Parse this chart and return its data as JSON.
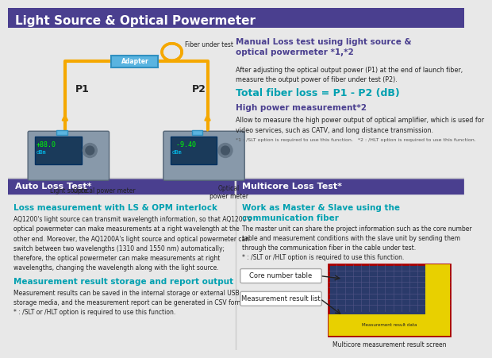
{
  "bg_color": "#e8e8e8",
  "header_bg": "#4a3f8f",
  "header_text": "Light Source & Optical Powermeter",
  "header_text_color": "#ffffff",
  "section_bottom_left_bg": "#4a3f8f",
  "section_bottom_right_bg": "#4a3f8f",
  "section_bottom_left_title": "Auto Loss Test*",
  "section_bottom_right_title": "Multicore Loss Test*",
  "teal_color": "#00a0b0",
  "purple_color": "#4a3f8f",
  "text_color": "#222222",
  "small_text_color": "#555555",
  "orange_color": "#f5a800",
  "blue_box_color": "#5ab4e0",
  "diagram_arrow_color": "#f5a800",
  "manual_loss_title": "Manual Loss test using light source &\noptical powermeter *1,*2",
  "manual_loss_body": "After adjusting the optical output power (P1) at the end of launch fiber,\nmeasure the output power of fiber under test (P2).",
  "total_fiber_loss_text": "Total fiber loss = P1 - P2 (dB)",
  "high_power_title": "High power measurement*2",
  "high_power_body": "Allow to measure the high power output of optical amplifier, which is used for\nvideo services, such as CATV, and long distance transmission.",
  "high_power_footnote": "*1 : /SLT option is required to use this function.   *2 : /HLT option is required to use this function.",
  "auto_loss_h1": "Loss measurement with LS & OPM interlock",
  "auto_loss_p1": "AQ1200's light source can transmit wavelength information, so that AQ1200's\noptical powermeter can make measurements at a right wavelength at the\nother end. Moreover, the AQ1200A's light source and optical powermeter can\nswitch between two wavelengths (1310 and 1550 nm) automatically;\ntherefore, the optical powermeter can make measurements at right\nwavelengths, changing the wavelength along with the light source.",
  "auto_loss_h2": "Measurement result storage and report output",
  "auto_loss_p2": "Measurement results can be saved in the internal storage or external USB\nstorage media, and the measurement report can be generated in CSV format.\n* : /SLT or /HLT option is required to use this function.",
  "multicore_h1": "Work as Master & Slave using the\ncommunication fiber",
  "multicore_p1": "The master unit can share the project information such as the core number\ntable and measurement conditions with the slave unit by sending them\nthrough the communication fiber in the cable under test.\n* : /SLT or /HLT option is required to use this function.",
  "label_core": "Core number table",
  "label_result": "Measurement result list",
  "caption": "Multicore measurement result screen",
  "adapter_label": "Adapter",
  "fiber_label": "Fiber under test",
  "p1_label": "P1",
  "p2_label": "P2",
  "light_source_label": "Light source",
  "opm1_label": "Optical power meter",
  "opm2_label": "Optical\npower meter"
}
